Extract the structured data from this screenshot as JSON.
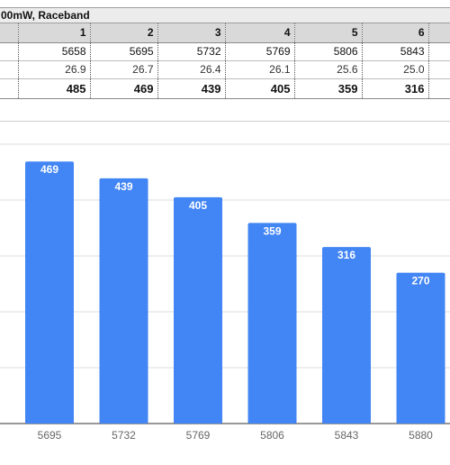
{
  "sheet": {
    "title": "00mW, Raceband",
    "header": [
      "1",
      "2",
      "3",
      "4",
      "5",
      "6"
    ],
    "rows": [
      [
        "5658",
        "5695",
        "5732",
        "5769",
        "5806",
        "5843"
      ],
      [
        "26.9",
        "26.7",
        "26.4",
        "26.1",
        "25.6",
        "25.0"
      ],
      [
        "485",
        "469",
        "439",
        "405",
        "359",
        "316"
      ]
    ]
  },
  "chart_data": {
    "type": "bar",
    "categories": [
      "5695",
      "5732",
      "5769",
      "5806",
      "5843",
      "5880"
    ],
    "values": [
      469,
      439,
      405,
      359,
      316,
      270
    ],
    "bar_color": "#4285f4",
    "grid": true,
    "ylim": [
      0,
      500
    ]
  }
}
